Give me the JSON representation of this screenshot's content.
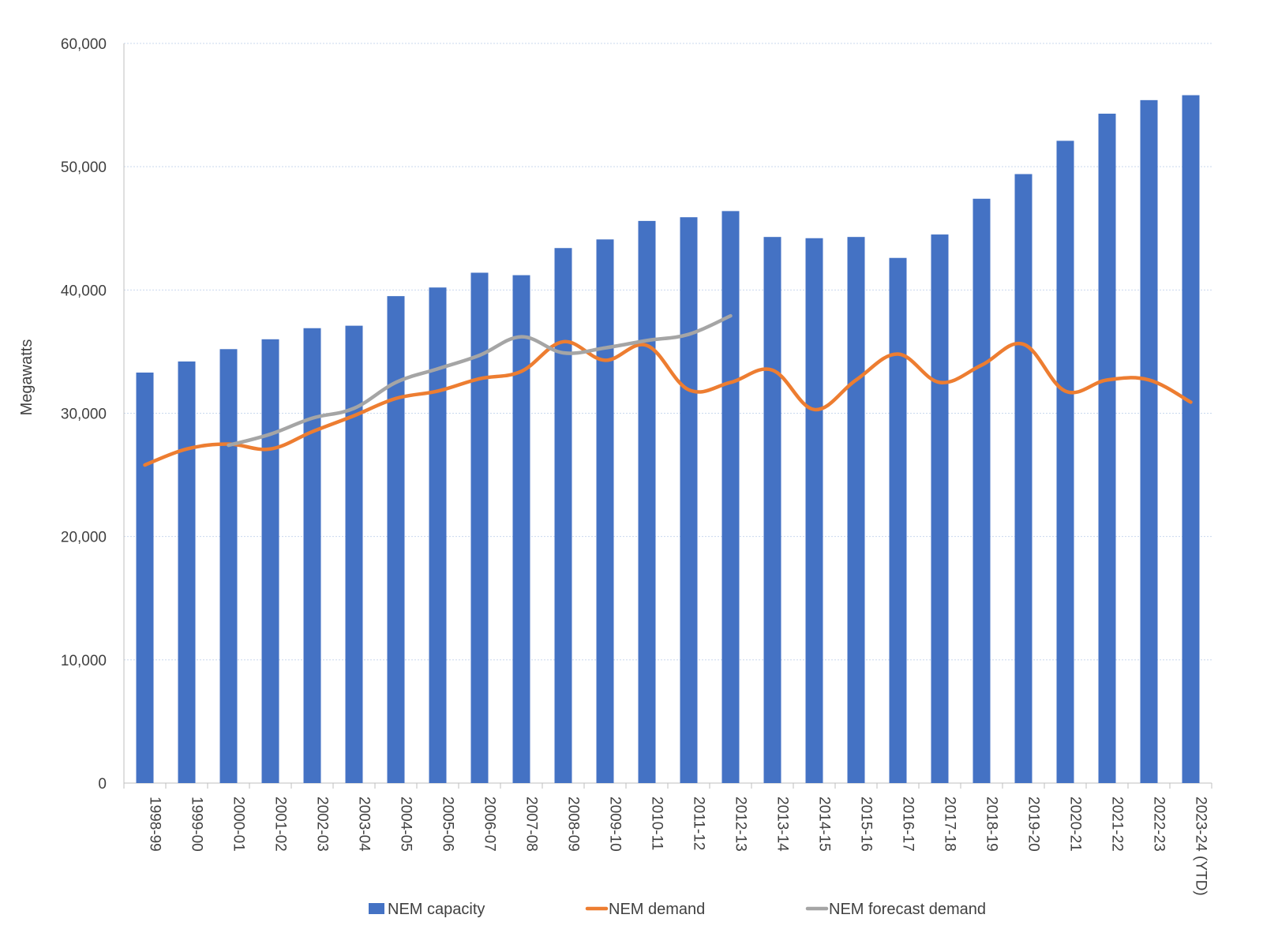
{
  "chart_data": {
    "type": "bar",
    "title": "",
    "xlabel": "",
    "ylabel": "Megawatts",
    "ylim": [
      0,
      60000
    ],
    "yticks": [
      0,
      10000,
      20000,
      30000,
      40000,
      50000,
      60000
    ],
    "ytick_labels": [
      "0",
      "10,000",
      "20,000",
      "30,000",
      "40,000",
      "50,000",
      "60,000"
    ],
    "grid": true,
    "legend_position": "bottom",
    "categories": [
      "1998-99",
      "1999-00",
      "2000-01",
      "2001-02",
      "2002-03",
      "2003-04",
      "2004-05",
      "2005-06",
      "2006-07",
      "2007-08",
      "2008-09",
      "2009-10",
      "2010-11",
      "2011-12",
      "2012-13",
      "2013-14",
      "2014-15",
      "2015-16",
      "2016-17",
      "2017-18",
      "2018-19",
      "2019-20",
      "2020-21",
      "2021-22",
      "2022-23",
      "2023-24 (YTD)"
    ],
    "series": [
      {
        "name": "NEM capacity",
        "type": "bar",
        "color": "#4472C4",
        "values": [
          33300,
          34200,
          35200,
          36000,
          36900,
          37100,
          39500,
          40200,
          41400,
          41200,
          43400,
          44100,
          45600,
          45900,
          46400,
          44300,
          44200,
          44300,
          42600,
          44500,
          47400,
          49400,
          52100,
          54300,
          55400,
          55800
        ]
      },
      {
        "name": "NEM demand",
        "type": "line",
        "color": "#ED7D31",
        "values": [
          25800,
          27100,
          27500,
          27100,
          28500,
          29800,
          31200,
          31800,
          32800,
          33400,
          35800,
          34300,
          35500,
          31900,
          32500,
          33500,
          30300,
          32700,
          34800,
          32500,
          33900,
          35600,
          31800,
          32700,
          32700,
          30900
        ]
      },
      {
        "name": "NEM forecast demand",
        "type": "line",
        "color": "#A5A5A5",
        "values": [
          null,
          null,
          27400,
          28300,
          29600,
          30400,
          32500,
          33600,
          34700,
          36200,
          34900,
          35300,
          35900,
          36400,
          37900,
          null,
          null,
          null,
          null,
          null,
          null,
          null,
          null,
          null,
          null,
          null
        ]
      }
    ]
  }
}
